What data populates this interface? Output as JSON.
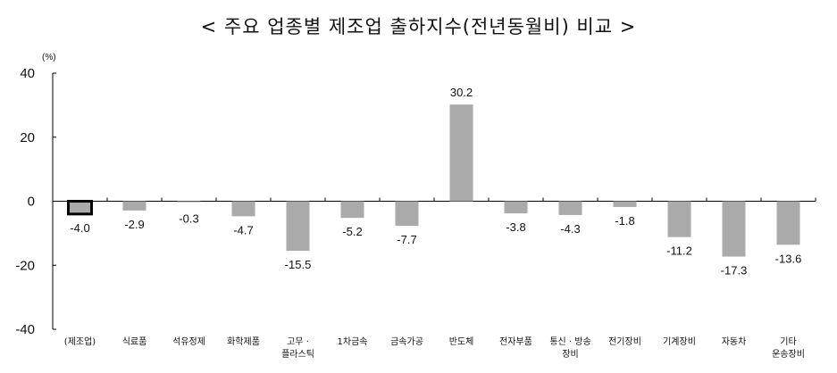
{
  "chart_data": {
    "type": "bar",
    "title": "< 주요 업종별 제조업 출하지수(전년동월비) 비교 >",
    "ylabel": "(%)",
    "ylim": [
      -40,
      40
    ],
    "yticks": [
      40,
      20,
      0,
      -20,
      -40
    ],
    "grid": false,
    "categories": [
      "(제조업)",
      "식료품",
      "석유정제",
      "화학제품",
      "고무 · 플라스틱",
      "1차금속",
      "금속가공",
      "반도체",
      "전자부품",
      "통신 · 방송 장비",
      "전기장비",
      "기계장비",
      "자동차",
      "기타 운송장비"
    ],
    "category_lines": [
      [
        "(제조업)"
      ],
      [
        "식료품"
      ],
      [
        "석유정제"
      ],
      [
        "화학제품"
      ],
      [
        "고무 ·",
        "플라스틱"
      ],
      [
        "1차금속"
      ],
      [
        "금속가공"
      ],
      [
        "반도체"
      ],
      [
        "전자부품"
      ],
      [
        "통신 · 방송",
        "장비"
      ],
      [
        "전기장비"
      ],
      [
        "기계장비"
      ],
      [
        "자동차"
      ],
      [
        "기타",
        "운송장비"
      ]
    ],
    "values": [
      -4.0,
      -2.9,
      -0.3,
      -4.7,
      -15.5,
      -5.2,
      -7.7,
      30.2,
      -3.8,
      -4.3,
      -1.8,
      -11.2,
      -17.3,
      -13.6
    ],
    "value_labels": [
      "-4.0",
      "-2.9",
      "-0.3",
      "-4.7",
      "-15.5",
      "-5.2",
      "-7.7",
      "30.2",
      "-3.8",
      "-4.3",
      "-1.8",
      "-11.2",
      "-17.3",
      "-13.6"
    ],
    "highlight_index": 0,
    "colors": {
      "bar": "#aaaaaa",
      "highlight_border": "#000000",
      "axis": "#000000"
    }
  }
}
